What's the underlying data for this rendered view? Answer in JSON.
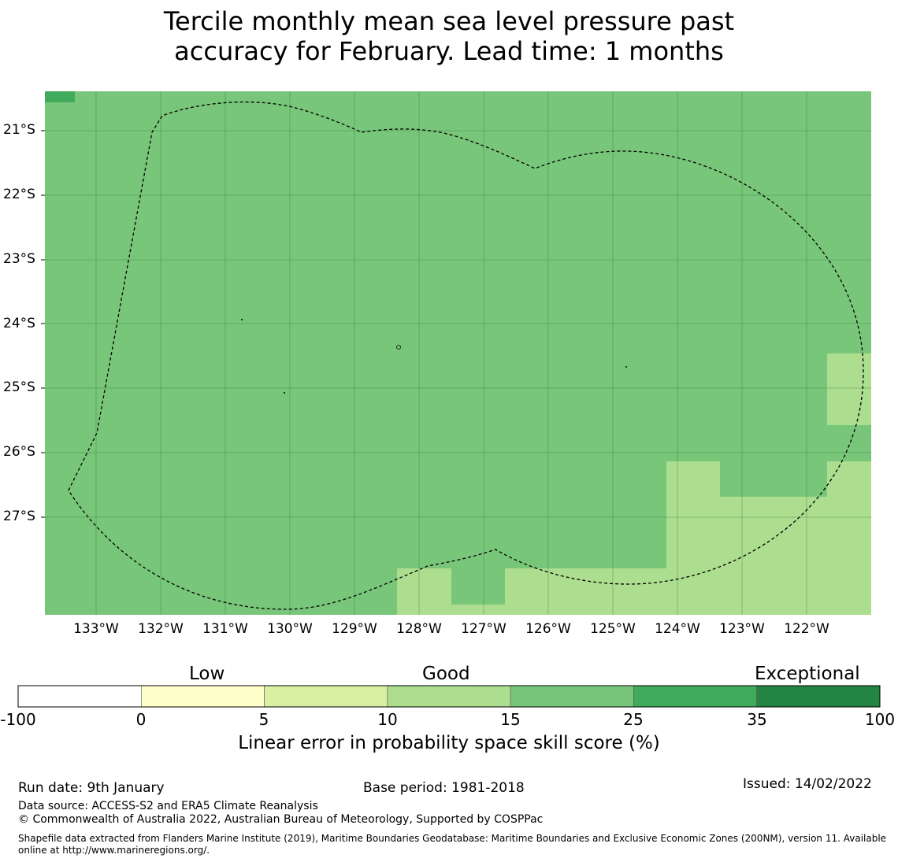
{
  "title_line1": "Tercile monthly mean sea level pressure past",
  "title_line2": "accuracy for February. Lead time: 1 months",
  "map": {
    "lon_range": [
      -133.8,
      -121.0
    ],
    "lat_range": [
      -28.5,
      -20.4
    ],
    "lat_labels": [
      "21°S",
      "22°S",
      "23°S",
      "24°S",
      "25°S",
      "26°S",
      "27°S"
    ],
    "lon_labels": [
      "133°W",
      "132°W",
      "131°W",
      "130°W",
      "129°W",
      "128°W",
      "127°W",
      "126°W",
      "125°W",
      "124°W",
      "123°W",
      "122°W"
    ],
    "base_color": "#78c679",
    "patch_colors": {
      "good_light": "#addd8e",
      "strong": "#41ab5d"
    },
    "boundary_style": "dashed",
    "islands": [
      "small island marks inside boundary"
    ]
  },
  "colorbar": {
    "categories": [
      {
        "label": "Low"
      },
      {
        "label": "Good"
      },
      {
        "label": "Exceptional"
      }
    ],
    "ticks": [
      "-100",
      "0",
      "5",
      "10",
      "15",
      "25",
      "35",
      "100"
    ],
    "colors": [
      "#ffffff",
      "#ffffcc",
      "#d9f0a3",
      "#addd8e",
      "#78c679",
      "#41ab5d",
      "#238443"
    ],
    "label": "Linear error in probability space skill score (%)"
  },
  "footer": {
    "run_date": "Run date: 9th January",
    "base_period": "Base period: 1981-2018",
    "issued": "Issued: 14/02/2022",
    "data_source": "Data source: ACCESS-S2 and ERA5 Climate Reanalysis",
    "copyright": "© Commonwealth of Australia 2022, Australian Bureau of Meteorology, Supported by COSPPac",
    "shapefile": "Shapefile data extracted from Flanders Marine Institute (2019), Maritime Boundaries Geodatabase: Maritime Boundaries and Exclusive Economic Zones (200NM), version 11. Available online at http://www.marineregions.org/."
  }
}
